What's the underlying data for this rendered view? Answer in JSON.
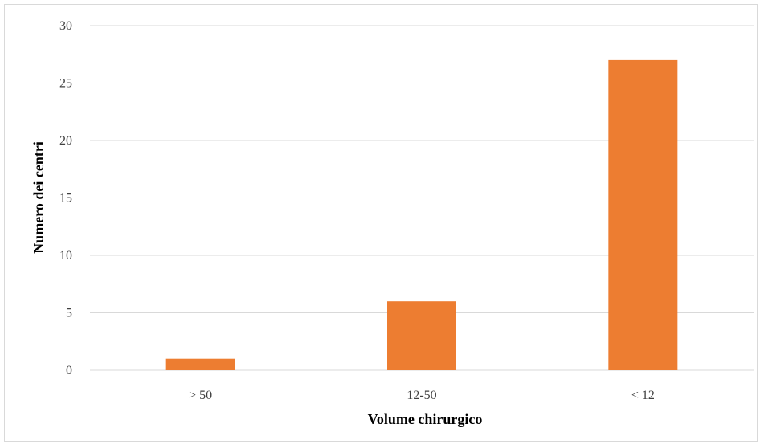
{
  "chart_data": {
    "type": "bar",
    "title": "",
    "xlabel": "Volume chirurgico",
    "ylabel": "Numero dei centri",
    "categories": [
      "> 50",
      "12-50",
      "< 12"
    ],
    "values": [
      1,
      6,
      27
    ],
    "ylim": [
      0,
      30
    ],
    "yticks": [
      0,
      5,
      10,
      15,
      20,
      25,
      30
    ],
    "grid": true,
    "legend": "none",
    "bar_color": "#ED7D31",
    "grid_color": "#D9D9D9"
  }
}
